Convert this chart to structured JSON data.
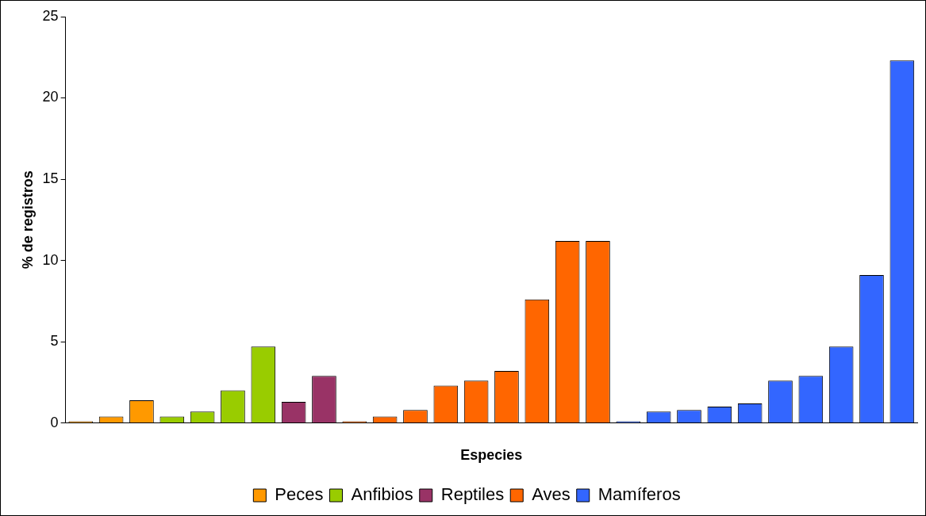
{
  "chart_data": {
    "type": "bar",
    "xlabel": "Especies",
    "ylabel": "% de registros",
    "categories": [
      null,
      null,
      null,
      null,
      null,
      null,
      null,
      null,
      null,
      null,
      null,
      null,
      null,
      null,
      null,
      null,
      null,
      null,
      null,
      null,
      null,
      null,
      null,
      null,
      null,
      null,
      null,
      null
    ],
    "series": [
      {
        "name": "Peces",
        "color": "#ff9900",
        "values": [
          0.1,
          0.4,
          1.4,
          null,
          null,
          null,
          null,
          null,
          null,
          null,
          null,
          null,
          null,
          null,
          null,
          null,
          null,
          null,
          null,
          null,
          null,
          null,
          null,
          null,
          null,
          null,
          null,
          null
        ]
      },
      {
        "name": "Anfibios",
        "color": "#99cc00",
        "values": [
          null,
          null,
          null,
          0.4,
          0.7,
          2.0,
          4.7,
          null,
          null,
          null,
          null,
          null,
          null,
          null,
          null,
          null,
          null,
          null,
          null,
          null,
          null,
          null,
          null,
          null,
          null,
          null,
          null,
          null
        ]
      },
      {
        "name": "Reptiles",
        "color": "#993366",
        "values": [
          null,
          null,
          null,
          null,
          null,
          null,
          null,
          1.3,
          2.9,
          null,
          null,
          null,
          null,
          null,
          null,
          null,
          null,
          null,
          null,
          null,
          null,
          null,
          null,
          null,
          null,
          null,
          null,
          null
        ]
      },
      {
        "name": "Aves",
        "color": "#ff6600",
        "values": [
          null,
          null,
          null,
          null,
          null,
          null,
          null,
          null,
          null,
          0.1,
          0.4,
          0.8,
          2.3,
          2.6,
          3.2,
          7.6,
          11.2,
          11.2,
          null,
          null,
          null,
          null,
          null,
          null,
          null,
          null,
          null,
          null
        ]
      },
      {
        "name": "Mamíferos",
        "color": "#3366ff",
        "values": [
          null,
          null,
          null,
          null,
          null,
          null,
          null,
          null,
          null,
          null,
          null,
          null,
          null,
          null,
          null,
          null,
          null,
          null,
          0.1,
          0.7,
          0.8,
          1.0,
          1.2,
          2.6,
          2.9,
          4.7,
          9.1,
          22.3
        ]
      }
    ],
    "ylim": [
      0,
      25
    ],
    "yticks": [
      0,
      5,
      10,
      15,
      20,
      25
    ],
    "grid": false,
    "legend": "bottom"
  }
}
